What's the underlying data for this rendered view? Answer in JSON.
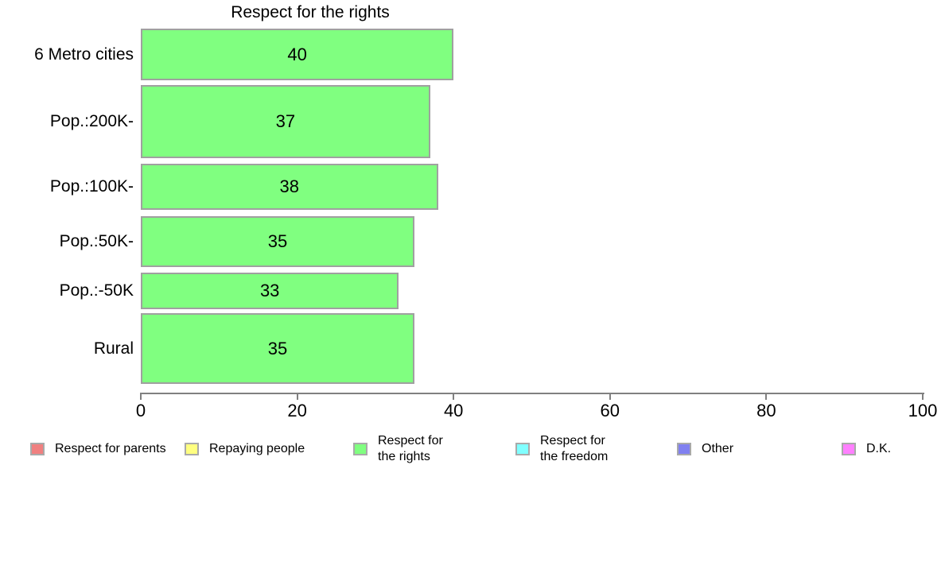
{
  "chart_data": {
    "type": "bar",
    "orientation": "horizontal",
    "title": "Respect for the rights",
    "categories": [
      "6 Metro cities",
      "Pop.:200K-",
      "Pop.:100K-",
      "Pop.:50K-",
      "Pop.:-50K",
      "Rural"
    ],
    "values": [
      40,
      37,
      38,
      35,
      33,
      35
    ],
    "xlabel": "",
    "ylabel": "",
    "xlim": [
      0,
      100
    ],
    "x_ticks": [
      0,
      20,
      40,
      60,
      80,
      100
    ],
    "grid": "off",
    "bar_color": "#80ff80",
    "bar_border_color": "#a0a0a0",
    "value_label_color": "#000000",
    "legend_position": "bottom",
    "legend": [
      {
        "label": "Respect for parents",
        "color": "#f08080"
      },
      {
        "label": "Repaying people",
        "color": "#ffff80"
      },
      {
        "label": "Respect for\nthe rights",
        "color": "#80ff80"
      },
      {
        "label": "Respect for\nthe freedom",
        "color": "#80ffff"
      },
      {
        "label": "Other",
        "color": "#8080f0"
      },
      {
        "label": "D.K.",
        "color": "#ff80ff"
      }
    ]
  }
}
